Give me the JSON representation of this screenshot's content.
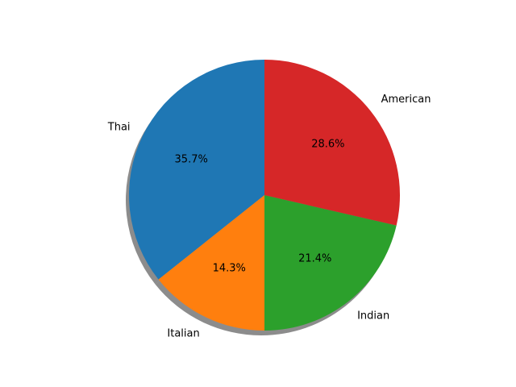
{
  "chart_data": {
    "type": "pie",
    "categories": [
      "Thai",
      "Italian",
      "Indian",
      "American"
    ],
    "values": [
      35.7,
      14.3,
      21.4,
      28.6
    ],
    "percent_labels": [
      "35.7%",
      "14.3%",
      "21.4%",
      "28.6%"
    ],
    "colors": [
      "#1f77b4",
      "#ff7f0e",
      "#2ca02c",
      "#d62728"
    ],
    "start_angle_deg": 90,
    "direction": "counterclockwise",
    "shadow": true
  }
}
